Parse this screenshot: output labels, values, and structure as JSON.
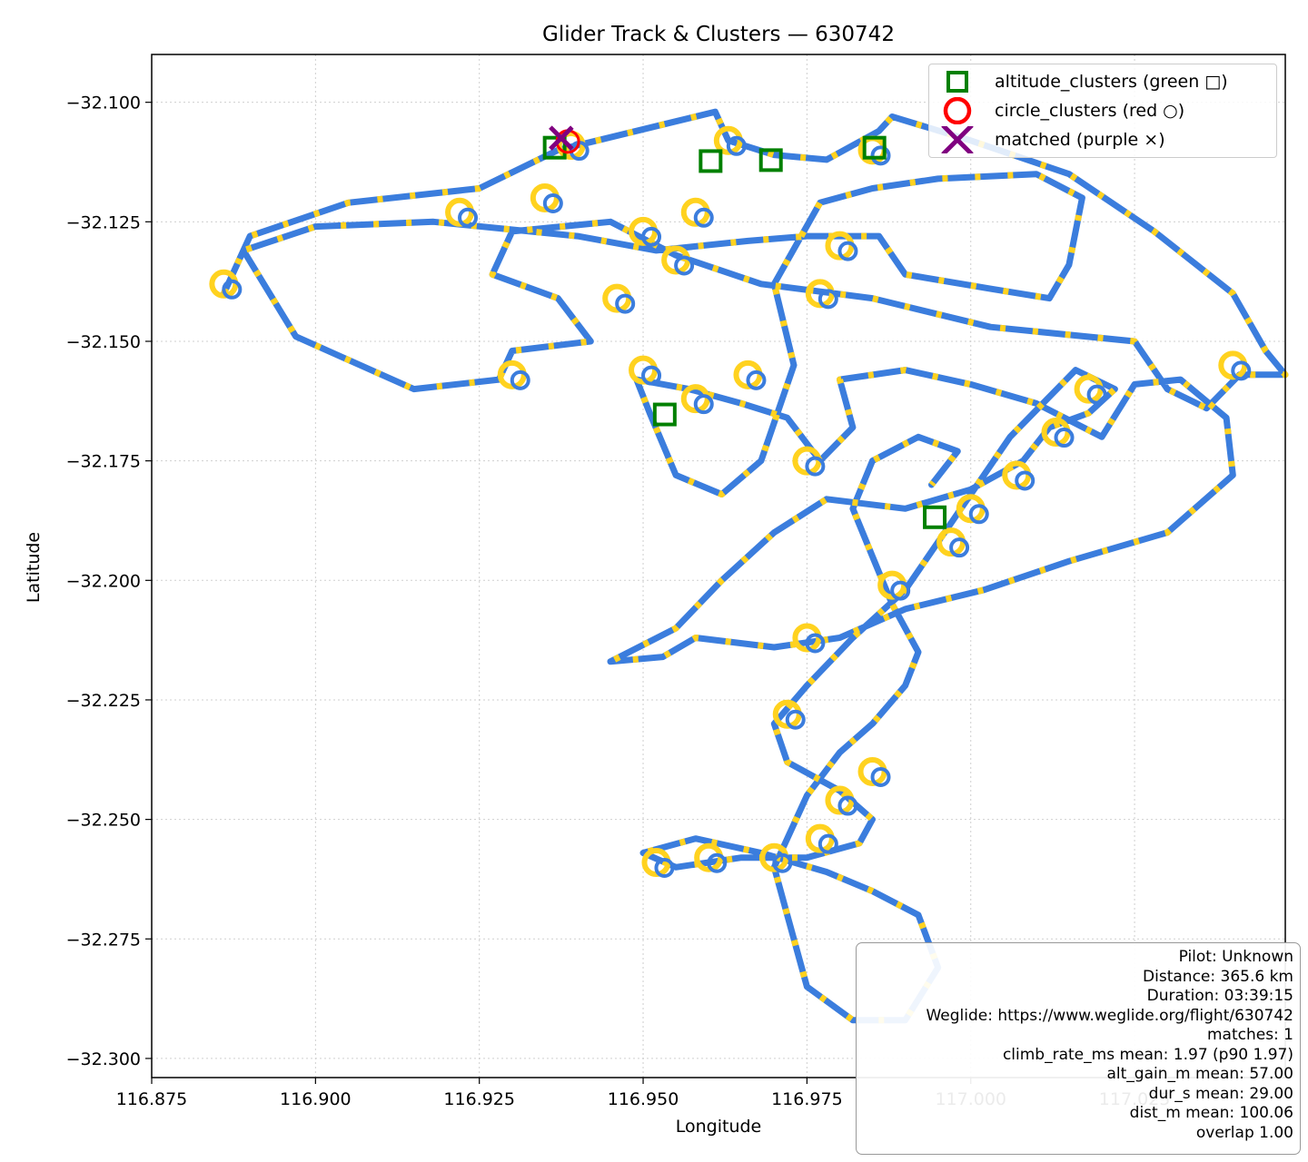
{
  "chart_data": {
    "type": "scatter",
    "title": "Glider Track & Clusters — 630742",
    "xlabel": "Longitude",
    "ylabel": "Latitude",
    "xlim": [
      116.875,
      117.048
    ],
    "ylim": [
      -32.304,
      -32.09
    ],
    "xticks": [
      "116.875",
      "116.900",
      "116.925",
      "116.950",
      "116.975",
      "117.000",
      "117.025"
    ],
    "yticks": [
      "−32.100",
      "−32.125",
      "−32.150",
      "−32.175",
      "−32.200",
      "−32.225",
      "−32.250",
      "−32.275",
      "−32.300"
    ],
    "grid": true,
    "legend_position": "top-right",
    "series": [
      {
        "name": "altitude_clusters (green □)",
        "marker": "square",
        "color": "#008000",
        "points": [
          [
            116.9365,
            -32.1095
          ],
          [
            116.9603,
            -32.1123
          ],
          [
            116.9695,
            -32.1121
          ],
          [
            116.9853,
            -32.1095
          ],
          [
            116.9533,
            -32.1653
          ],
          [
            116.9945,
            -32.1868
          ]
        ]
      },
      {
        "name": "circle_clusters (red ○)",
        "marker": "circle",
        "color": "#ff0000",
        "points": [
          [
            116.9385,
            -32.1082
          ]
        ]
      },
      {
        "name": "matched (purple ×)",
        "marker": "x",
        "color": "#800080",
        "points": [
          [
            116.9375,
            -32.1075
          ]
        ]
      }
    ],
    "track": {
      "color_cruise": "#3b7ddd",
      "color_climb": "#ffd21f",
      "route": [
        [
          116.886,
          -32.14
        ],
        [
          116.89,
          -32.128
        ],
        [
          116.905,
          -32.121
        ],
        [
          116.925,
          -32.118
        ],
        [
          116.937,
          -32.11
        ],
        [
          116.955,
          -32.104
        ],
        [
          116.961,
          -32.102
        ],
        [
          116.963,
          -32.108
        ],
        [
          116.97,
          -32.111
        ],
        [
          116.978,
          -32.112
        ],
        [
          116.986,
          -32.106
        ],
        [
          116.988,
          -32.103
        ],
        [
          117.0,
          -32.108
        ],
        [
          117.015,
          -32.115
        ],
        [
          117.028,
          -32.127
        ],
        [
          117.04,
          -32.14
        ],
        [
          117.045,
          -32.152
        ],
        [
          117.048,
          -32.157
        ],
        [
          117.041,
          -32.157
        ],
        [
          117.036,
          -32.164
        ],
        [
          117.03,
          -32.16
        ],
        [
          117.025,
          -32.15
        ],
        [
          117.003,
          -32.147
        ],
        [
          116.985,
          -32.141
        ],
        [
          116.968,
          -32.138
        ],
        [
          116.955,
          -32.132
        ],
        [
          116.945,
          -32.125
        ],
        [
          116.93,
          -32.127
        ],
        [
          116.927,
          -32.136
        ],
        [
          116.937,
          -32.141
        ],
        [
          116.942,
          -32.15
        ],
        [
          116.93,
          -32.152
        ],
        [
          116.928,
          -32.158
        ],
        [
          116.915,
          -32.16
        ],
        [
          116.897,
          -32.149
        ],
        [
          116.889,
          -32.131
        ],
        [
          116.9,
          -32.126
        ],
        [
          116.918,
          -32.125
        ],
        [
          116.94,
          -32.128
        ],
        [
          116.952,
          -32.131
        ],
        [
          116.966,
          -32.129
        ],
        [
          116.975,
          -32.128
        ],
        [
          116.986,
          -32.128
        ],
        [
          116.99,
          -32.136
        ],
        [
          117.003,
          -32.139
        ],
        [
          117.012,
          -32.141
        ],
        [
          117.015,
          -32.134
        ],
        [
          117.017,
          -32.12
        ],
        [
          117.01,
          -32.115
        ],
        [
          116.995,
          -32.116
        ],
        [
          116.985,
          -32.118
        ],
        [
          116.977,
          -32.121
        ],
        [
          116.97,
          -32.138
        ],
        [
          116.973,
          -32.155
        ],
        [
          116.968,
          -32.175
        ],
        [
          116.962,
          -32.182
        ],
        [
          116.955,
          -32.178
        ],
        [
          116.951,
          -32.165
        ],
        [
          116.949,
          -32.158
        ],
        [
          116.957,
          -32.16
        ],
        [
          116.965,
          -32.163
        ],
        [
          116.972,
          -32.166
        ],
        [
          116.977,
          -32.175
        ],
        [
          116.982,
          -32.168
        ],
        [
          116.98,
          -32.158
        ],
        [
          116.99,
          -32.156
        ],
        [
          117.0,
          -32.159
        ],
        [
          117.01,
          -32.163
        ],
        [
          117.02,
          -32.17
        ],
        [
          117.025,
          -32.159
        ],
        [
          117.032,
          -32.158
        ],
        [
          117.039,
          -32.166
        ],
        [
          117.04,
          -32.178
        ],
        [
          117.03,
          -32.19
        ],
        [
          117.015,
          -32.196
        ],
        [
          117.002,
          -32.202
        ],
        [
          116.99,
          -32.206
        ],
        [
          116.98,
          -32.212
        ],
        [
          116.97,
          -32.214
        ],
        [
          116.958,
          -32.212
        ],
        [
          116.953,
          -32.216
        ],
        [
          116.945,
          -32.217
        ],
        [
          116.955,
          -32.21
        ],
        [
          116.962,
          -32.2
        ],
        [
          116.97,
          -32.19
        ],
        [
          116.978,
          -32.183
        ],
        [
          116.99,
          -32.185
        ],
        [
          117.0,
          -32.181
        ],
        [
          117.008,
          -32.175
        ],
        [
          117.012,
          -32.168
        ],
        [
          117.018,
          -32.165
        ],
        [
          117.022,
          -32.16
        ],
        [
          117.016,
          -32.156
        ],
        [
          117.006,
          -32.17
        ],
        [
          116.997,
          -32.188
        ],
        [
          116.99,
          -32.202
        ],
        [
          116.982,
          -32.212
        ],
        [
          116.975,
          -32.222
        ],
        [
          116.97,
          -32.23
        ],
        [
          116.972,
          -32.238
        ],
        [
          116.98,
          -32.244
        ],
        [
          116.985,
          -32.25
        ],
        [
          116.983,
          -32.255
        ],
        [
          116.975,
          -32.258
        ],
        [
          116.965,
          -32.258
        ],
        [
          116.955,
          -32.26
        ],
        [
          116.95,
          -32.257
        ],
        [
          116.958,
          -32.254
        ],
        [
          116.968,
          -32.257
        ],
        [
          116.978,
          -32.261
        ],
        [
          116.985,
          -32.265
        ],
        [
          116.992,
          -32.27
        ],
        [
          116.995,
          -32.281
        ],
        [
          116.99,
          -32.292
        ],
        [
          116.982,
          -32.292
        ],
        [
          116.975,
          -32.285
        ],
        [
          116.972,
          -32.27
        ],
        [
          116.97,
          -32.26
        ],
        [
          116.975,
          -32.245
        ],
        [
          116.98,
          -32.236
        ],
        [
          116.985,
          -32.23
        ],
        [
          116.99,
          -32.222
        ],
        [
          116.992,
          -32.215
        ],
        [
          116.988,
          -32.205
        ],
        [
          116.985,
          -32.195
        ],
        [
          116.982,
          -32.185
        ],
        [
          116.985,
          -32.175
        ],
        [
          116.992,
          -32.17
        ],
        [
          116.998,
          -32.173
        ],
        [
          116.994,
          -32.18
        ]
      ],
      "climb_spots": [
        [
          116.886,
          -32.138
        ],
        [
          116.935,
          -32.12
        ],
        [
          116.939,
          -32.109
        ],
        [
          116.963,
          -32.108
        ],
        [
          116.958,
          -32.123
        ],
        [
          116.955,
          -32.133
        ],
        [
          116.946,
          -32.141
        ],
        [
          116.95,
          -32.156
        ],
        [
          116.958,
          -32.162
        ],
        [
          116.966,
          -32.157
        ],
        [
          116.975,
          -32.175
        ],
        [
          116.98,
          -32.13
        ],
        [
          116.977,
          -32.14
        ],
        [
          116.985,
          -32.11
        ],
        [
          116.95,
          -32.127
        ],
        [
          116.93,
          -32.157
        ],
        [
          117.0,
          -32.185
        ],
        [
          117.007,
          -32.178
        ],
        [
          117.013,
          -32.169
        ],
        [
          117.018,
          -32.16
        ],
        [
          116.997,
          -32.192
        ],
        [
          116.988,
          -32.201
        ],
        [
          116.975,
          -32.212
        ],
        [
          116.972,
          -32.228
        ],
        [
          116.98,
          -32.246
        ],
        [
          116.985,
          -32.24
        ],
        [
          116.952,
          -32.259
        ],
        [
          116.96,
          -32.258
        ],
        [
          116.97,
          -32.258
        ],
        [
          116.977,
          -32.254
        ],
        [
          117.04,
          -32.155
        ],
        [
          116.922,
          -32.123
        ]
      ]
    }
  },
  "info_box": {
    "lines": [
      "Pilot: Unknown",
      "Distance: 365.6 km",
      "Duration: 03:39:15",
      "Weglide: https://www.weglide.org/flight/630742",
      "matches: 1",
      "climb_rate_ms mean: 1.97 (p90 1.97)",
      "alt_gain_m mean: 57.00",
      "dur_s mean: 29.00",
      "dist_m mean: 100.06",
      "overlap 1.00"
    ]
  }
}
